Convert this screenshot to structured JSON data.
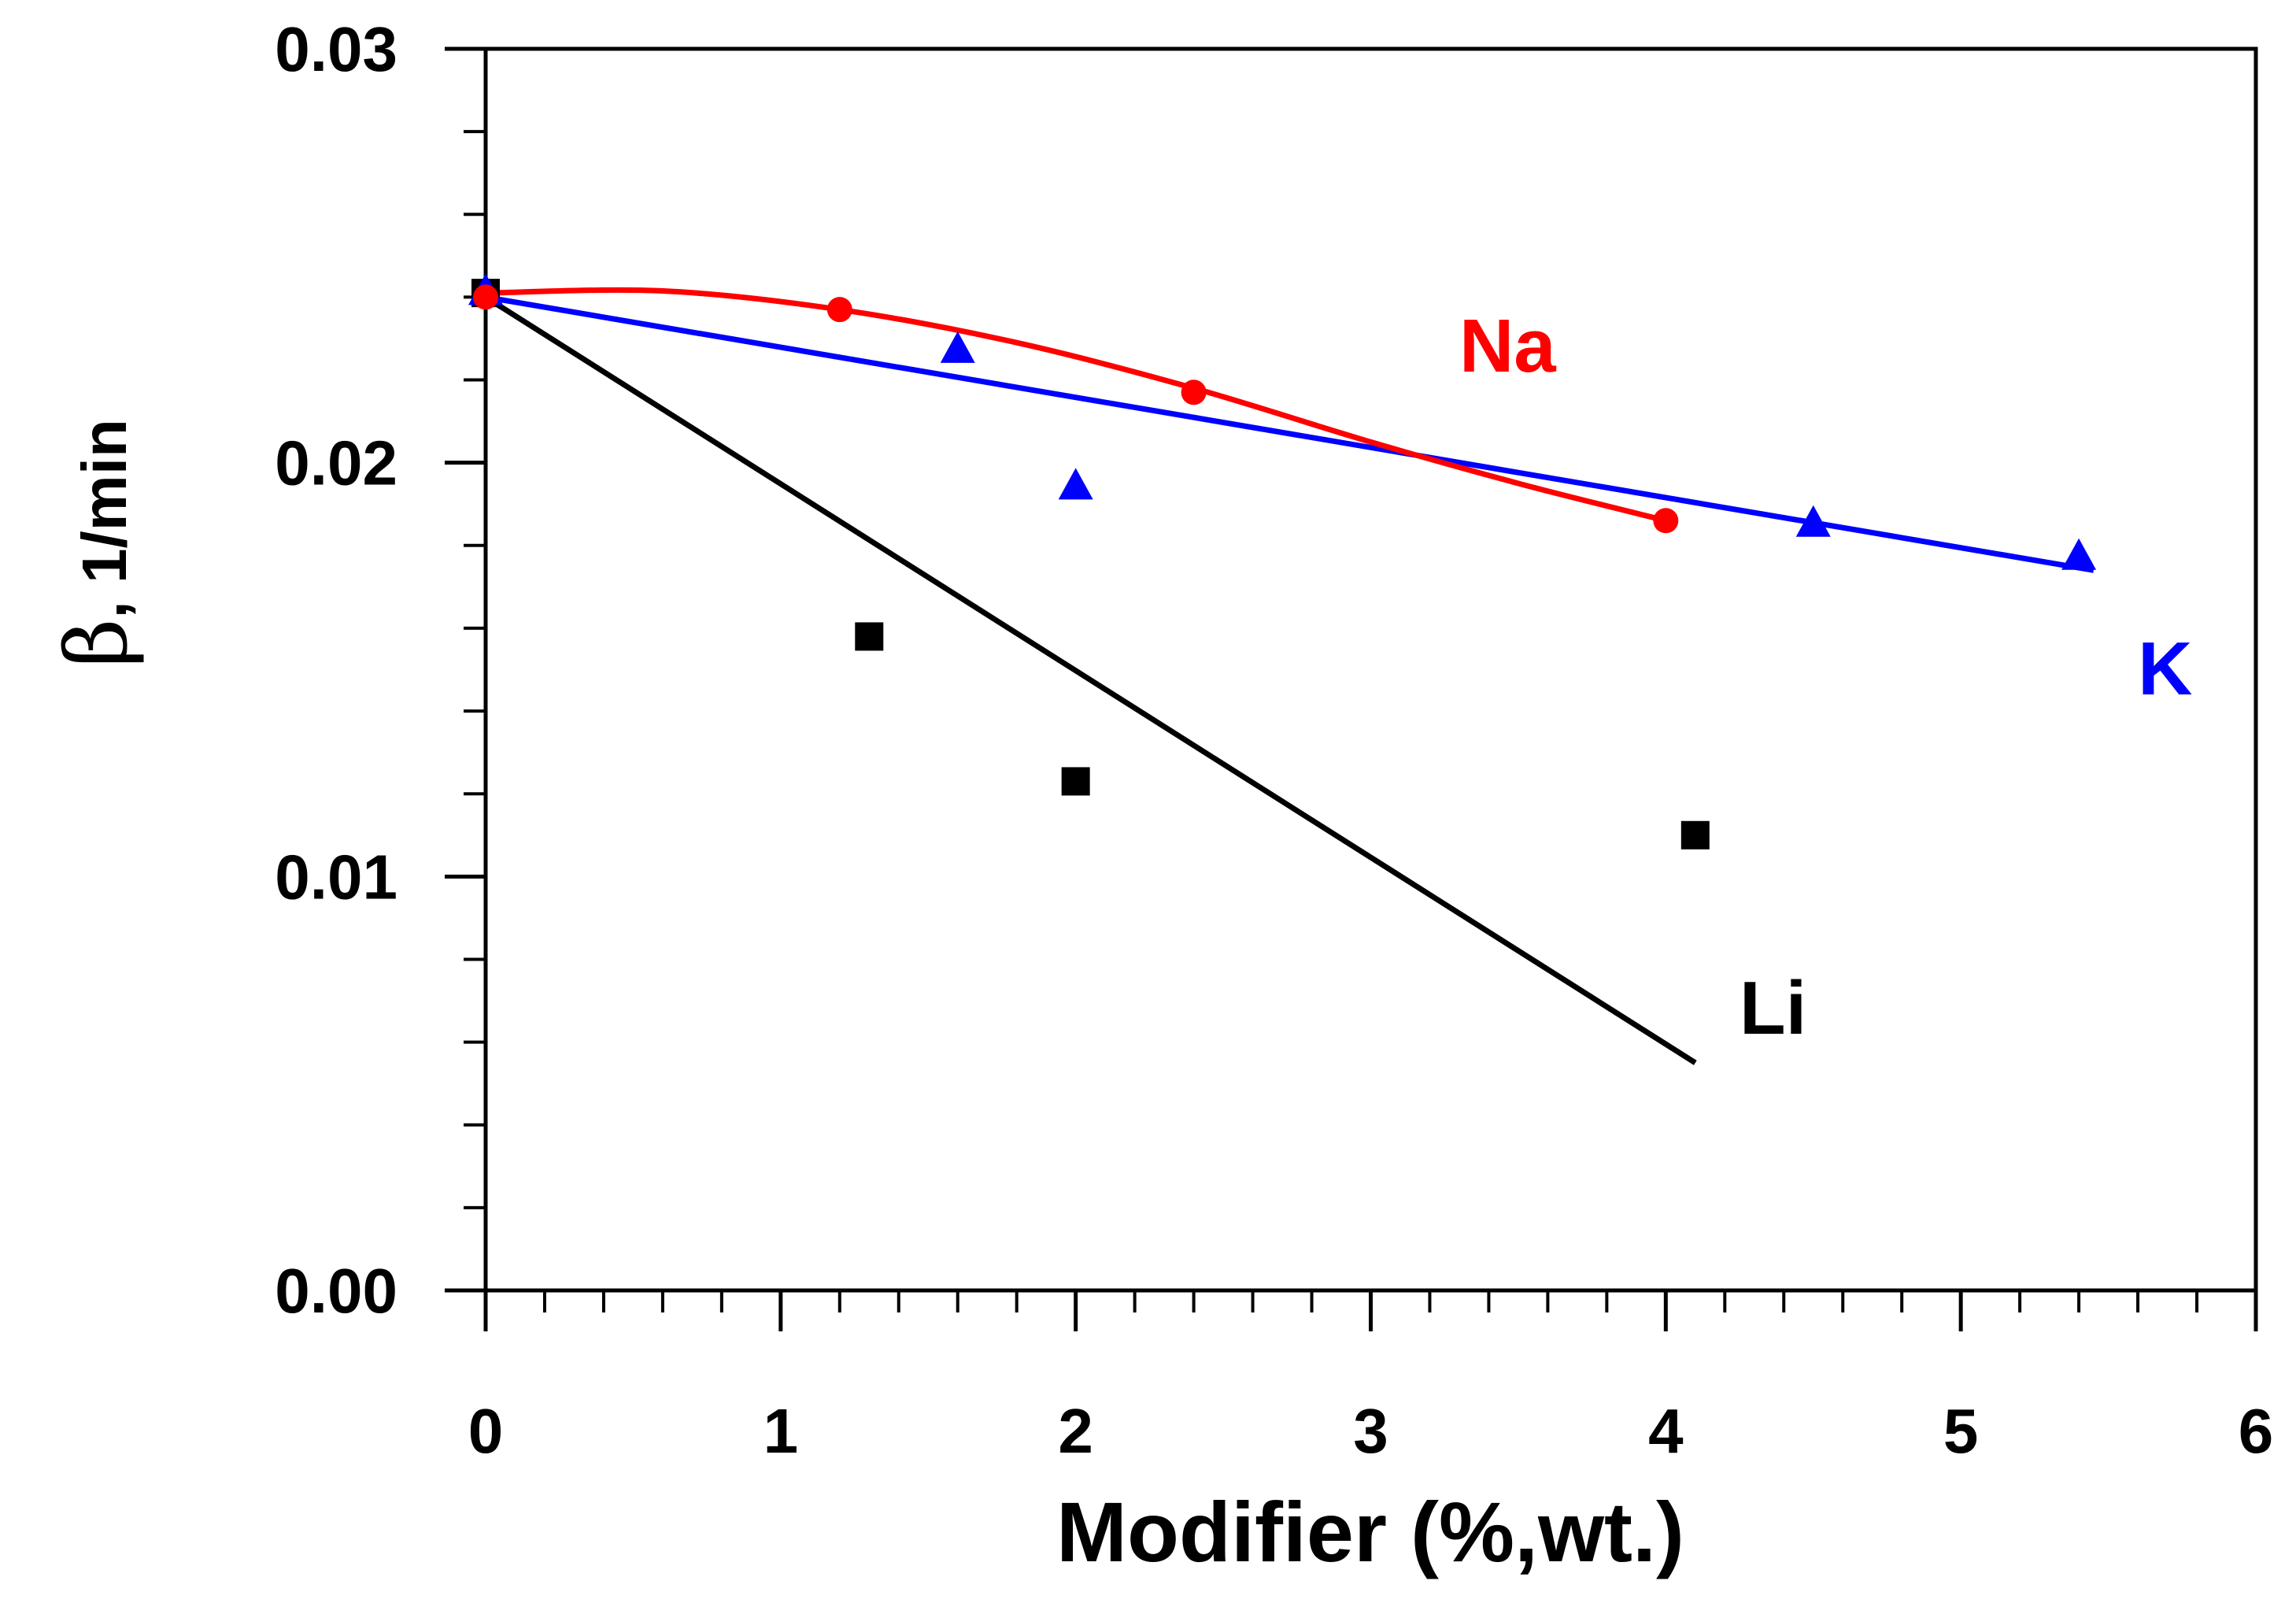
{
  "chart_data": {
    "type": "scatter",
    "xlabel": "Modifier (%,wt.)",
    "ylabel_symbol": "β",
    "ylabel_unit": ", 1/min",
    "xlim": [
      0,
      6
    ],
    "ylim": [
      0,
      0.03
    ],
    "x_ticks": [
      0,
      1,
      2,
      3,
      4,
      5,
      6
    ],
    "x_tick_labels": [
      "0",
      "1",
      "2",
      "3",
      "4",
      "5",
      "6"
    ],
    "y_ticks": [
      0,
      0.01,
      0.02,
      0.03
    ],
    "y_tick_labels": [
      "0.00",
      "0.01",
      "0.02",
      "0.03"
    ],
    "x_minor_step": 0.2,
    "y_minor_step": 0.002,
    "series": [
      {
        "name": "Na",
        "label": "Na",
        "color": "#ff0000",
        "marker": "circle",
        "points": [
          [
            0,
            0.024
          ],
          [
            1.2,
            0.0237
          ],
          [
            2.4,
            0.0217
          ],
          [
            4.0,
            0.0186
          ]
        ],
        "fit": "smooth",
        "fit_points": [
          [
            0,
            0.0241
          ],
          [
            0.6,
            0.02415
          ],
          [
            1.2,
            0.0237
          ],
          [
            1.8,
            0.0229
          ],
          [
            2.4,
            0.0218
          ],
          [
            3.0,
            0.0205
          ],
          [
            3.5,
            0.0195
          ],
          [
            4.0,
            0.0186
          ]
        ],
        "label_at": [
          3.3,
          0.0222
        ]
      },
      {
        "name": "K",
        "label": "K",
        "color": "#0000ff",
        "marker": "triangle",
        "points": [
          [
            0,
            0.0241
          ],
          [
            1.6,
            0.0227
          ],
          [
            2.0,
            0.0194
          ],
          [
            4.5,
            0.0185
          ],
          [
            5.4,
            0.0177
          ]
        ],
        "fit": "linear",
        "fit_points": [
          [
            0,
            0.024
          ],
          [
            5.45,
            0.0174
          ]
        ],
        "label_at": [
          5.6,
          0.0144
        ]
      },
      {
        "name": "Li",
        "label": "Li",
        "color": "#000000",
        "marker": "square",
        "points": [
          [
            0,
            0.0241
          ],
          [
            1.3,
            0.0158
          ],
          [
            2.0,
            0.0123
          ],
          [
            4.1,
            0.011
          ]
        ],
        "fit": "linear",
        "fit_points": [
          [
            0,
            0.024
          ],
          [
            4.1,
            0.0055
          ]
        ],
        "label_at": [
          4.25,
          0.0062
        ]
      }
    ]
  }
}
